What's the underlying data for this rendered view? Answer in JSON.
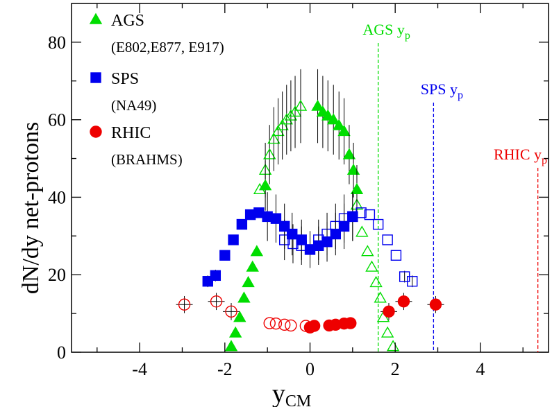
{
  "chart_data": {
    "type": "scatter",
    "xlabel": "y",
    "xlabel_sub": "CM",
    "ylabel": "dN/dy net-protons",
    "xlim": [
      -5.6,
      5.6
    ],
    "ylim": [
      0,
      90
    ],
    "xticks": [
      -4,
      -2,
      0,
      2,
      4
    ],
    "yticks": [
      0,
      20,
      40,
      60,
      80
    ],
    "grid": false,
    "legend_position": "top-left",
    "colors": {
      "AGS": "#00dd00",
      "SPS": "#0000ee",
      "RHIC": "#ee0000"
    },
    "series": [
      {
        "name": "AGS",
        "subtitle": "(E802,E877, E917)",
        "marker": "triangle",
        "measured": [
          {
            "x": -1.85,
            "y": 1.5
          },
          {
            "x": -1.75,
            "y": 5
          },
          {
            "x": -1.65,
            "y": 9
          },
          {
            "x": -1.55,
            "y": 14
          },
          {
            "x": -1.45,
            "y": 18
          },
          {
            "x": -1.35,
            "y": 22
          },
          {
            "x": -1.25,
            "y": 26
          },
          {
            "x": -1.05,
            "y": 43
          },
          {
            "x": 0.18,
            "y": 63.5
          },
          {
            "x": 0.3,
            "y": 62
          },
          {
            "x": 0.42,
            "y": 61
          },
          {
            "x": 0.55,
            "y": 60
          },
          {
            "x": 0.68,
            "y": 58.5
          },
          {
            "x": 0.8,
            "y": 57
          },
          {
            "x": 0.92,
            "y": 51
          },
          {
            "x": 1.02,
            "y": 47
          },
          {
            "x": 1.1,
            "y": 42
          }
        ],
        "reflected": [
          {
            "x": -1.18,
            "y": 42
          },
          {
            "x": -1.05,
            "y": 47
          },
          {
            "x": -0.95,
            "y": 51
          },
          {
            "x": -0.85,
            "y": 55
          },
          {
            "x": -0.75,
            "y": 57
          },
          {
            "x": -0.65,
            "y": 58.5
          },
          {
            "x": -0.55,
            "y": 60
          },
          {
            "x": -0.45,
            "y": 61
          },
          {
            "x": -0.35,
            "y": 62
          },
          {
            "x": -0.22,
            "y": 63.5
          },
          {
            "x": 1.1,
            "y": 38
          },
          {
            "x": 1.22,
            "y": 31
          },
          {
            "x": 1.35,
            "y": 26
          },
          {
            "x": 1.45,
            "y": 22
          },
          {
            "x": 1.55,
            "y": 18
          },
          {
            "x": 1.65,
            "y": 14
          },
          {
            "x": 1.72,
            "y": 9
          },
          {
            "x": 1.82,
            "y": 5
          },
          {
            "x": 1.95,
            "y": 1.5
          }
        ]
      },
      {
        "name": "SPS",
        "subtitle": "(NA49)",
        "marker": "square",
        "measured": [
          {
            "x": -2.4,
            "y": 18.3
          },
          {
            "x": -2.22,
            "y": 19.8
          },
          {
            "x": -2.0,
            "y": 25
          },
          {
            "x": -1.8,
            "y": 29
          },
          {
            "x": -1.6,
            "y": 33
          },
          {
            "x": -1.4,
            "y": 35.5
          },
          {
            "x": -1.2,
            "y": 36
          },
          {
            "x": -1.0,
            "y": 35
          },
          {
            "x": -0.8,
            "y": 34.5
          },
          {
            "x": -0.6,
            "y": 32.5
          },
          {
            "x": -0.42,
            "y": 30.5
          },
          {
            "x": -0.2,
            "y": 29
          },
          {
            "x": 0.0,
            "y": 26.5
          },
          {
            "x": 0.2,
            "y": 27.5
          },
          {
            "x": 0.4,
            "y": 28.5
          },
          {
            "x": 0.6,
            "y": 30.5
          },
          {
            "x": 0.8,
            "y": 32.5
          },
          {
            "x": 1.0,
            "y": 35
          }
        ],
        "reflected": [
          {
            "x": -0.6,
            "y": 29
          },
          {
            "x": -0.4,
            "y": 28
          },
          {
            "x": -0.2,
            "y": 27.5
          },
          {
            "x": 0.2,
            "y": 29
          },
          {
            "x": 0.4,
            "y": 30.5
          },
          {
            "x": 0.6,
            "y": 32.5
          },
          {
            "x": 0.8,
            "y": 34.5
          },
          {
            "x": 1.0,
            "y": 35
          },
          {
            "x": 1.2,
            "y": 36
          },
          {
            "x": 1.4,
            "y": 35.5
          },
          {
            "x": 1.6,
            "y": 33
          },
          {
            "x": 1.82,
            "y": 29
          },
          {
            "x": 2.02,
            "y": 25
          },
          {
            "x": 2.22,
            "y": 19.5
          },
          {
            "x": 2.4,
            "y": 18.3
          }
        ]
      },
      {
        "name": "RHIC",
        "subtitle": "(BRAHMS)",
        "marker": "circle",
        "measured": [
          {
            "x": 0.0,
            "y": 6.4
          },
          {
            "x": 0.1,
            "y": 6.8
          },
          {
            "x": 0.45,
            "y": 6.9
          },
          {
            "x": 0.6,
            "y": 7.1
          },
          {
            "x": 0.8,
            "y": 7.4
          },
          {
            "x": 0.95,
            "y": 7.5
          },
          {
            "x": 1.85,
            "y": 10.5
          },
          {
            "x": 2.2,
            "y": 13.1
          },
          {
            "x": 2.95,
            "y": 12.3
          }
        ],
        "reflected": [
          {
            "x": -2.95,
            "y": 12.3
          },
          {
            "x": -2.2,
            "y": 13.1
          },
          {
            "x": -1.85,
            "y": 10.5
          },
          {
            "x": -0.95,
            "y": 7.5
          },
          {
            "x": -0.8,
            "y": 7.4
          },
          {
            "x": -0.6,
            "y": 7.1
          },
          {
            "x": -0.45,
            "y": 6.9
          },
          {
            "x": -0.1,
            "y": 6.8
          },
          {
            "x": 0.0,
            "y": 6.4
          }
        ]
      }
    ],
    "beam_rapidities": [
      {
        "label": "AGS",
        "label_sub": "p",
        "x": 1.6,
        "color": "#00dd00"
      },
      {
        "label": "SPS",
        "label_sub": "p",
        "x": 2.9,
        "color": "#0000ee"
      },
      {
        "label": "RHIC",
        "label_sub": "p",
        "x": 5.35,
        "color": "#ee0000"
      }
    ],
    "yp_symbol": "y"
  }
}
